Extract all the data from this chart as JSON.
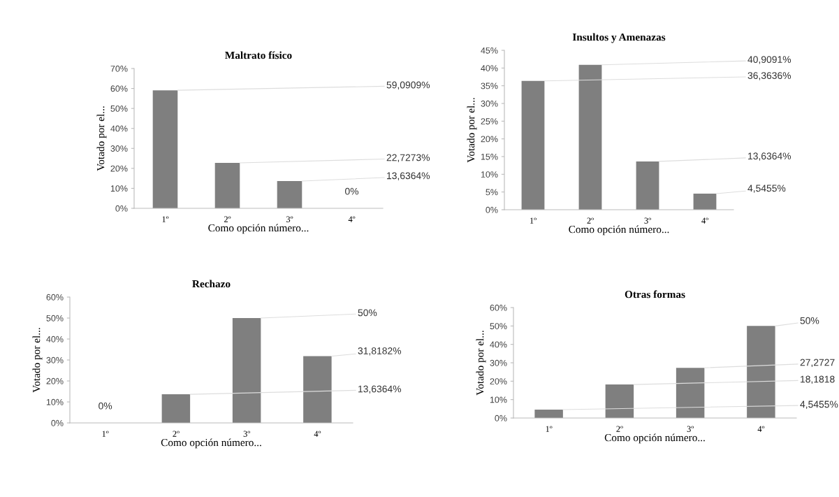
{
  "chart_data": [
    {
      "type": "bar",
      "title": "Maltrato físico",
      "xlabel": "Como opción número...",
      "ylabel": "Votado por el...",
      "categories": [
        "1º",
        "2º",
        "3º",
        "4º"
      ],
      "values": [
        59.0909,
        22.7273,
        13.6364,
        0
      ],
      "value_labels": [
        "59,0909%",
        "22,7273%",
        "13,6364%",
        "0%"
      ],
      "color": "#7f7f7f",
      "ylim": [
        0,
        70
      ],
      "yticks": [
        {
          "value": 0,
          "label": "0%"
        },
        {
          "value": 10,
          "label": "10%"
        },
        {
          "value": 20,
          "label": "20%"
        },
        {
          "value": 30,
          "label": "30%"
        },
        {
          "value": 40,
          "label": "40%"
        },
        {
          "value": 50,
          "label": "50%"
        },
        {
          "value": 60,
          "label": "60%"
        },
        {
          "value": 70,
          "label": "70%"
        }
      ],
      "grid": false,
      "legend": false
    },
    {
      "type": "bar",
      "title": "Insultos y Amenazas",
      "xlabel": "Como opción número...",
      "ylabel": "Votado por el...",
      "categories": [
        "1º",
        "2º",
        "3º",
        "4º"
      ],
      "values": [
        36.3636,
        40.9091,
        13.6364,
        4.5455
      ],
      "value_labels": [
        "36,3636%",
        "40,9091%",
        "13,6364%",
        "4,5455%"
      ],
      "color": "#7f7f7f",
      "ylim": [
        0,
        45
      ],
      "yticks": [
        {
          "value": 0,
          "label": "0%"
        },
        {
          "value": 5,
          "label": "5%"
        },
        {
          "value": 10,
          "label": "10%"
        },
        {
          "value": 15,
          "label": "15%"
        },
        {
          "value": 20,
          "label": "20%"
        },
        {
          "value": 25,
          "label": "25%"
        },
        {
          "value": 30,
          "label": "30%"
        },
        {
          "value": 35,
          "label": "35%"
        },
        {
          "value": 40,
          "label": "40%"
        },
        {
          "value": 45,
          "label": "45%"
        }
      ],
      "grid": false,
      "legend": false
    },
    {
      "type": "bar",
      "title": "Rechazo",
      "xlabel": "Como opción número...",
      "ylabel": "Votado por el...",
      "categories": [
        "1º",
        "2º",
        "3º",
        "4º"
      ],
      "values": [
        0,
        13.6364,
        50,
        31.8182
      ],
      "value_labels": [
        "0%",
        "13,6364%",
        "50%",
        "31,8182%"
      ],
      "color": "#7f7f7f",
      "ylim": [
        0,
        60
      ],
      "yticks": [
        {
          "value": 0,
          "label": "0%"
        },
        {
          "value": 10,
          "label": "10%"
        },
        {
          "value": 20,
          "label": "20%"
        },
        {
          "value": 30,
          "label": "30%"
        },
        {
          "value": 40,
          "label": "40%"
        },
        {
          "value": 50,
          "label": "50%"
        },
        {
          "value": 60,
          "label": "60%"
        }
      ],
      "grid": false,
      "legend": false
    },
    {
      "type": "bar",
      "title": "Otras formas",
      "xlabel": "Como opción número...",
      "ylabel": "Votado por el...",
      "categories": [
        "1º",
        "2º",
        "3º",
        "4º"
      ],
      "values": [
        4.5455,
        18.1818,
        27.2727,
        50
      ],
      "value_labels": [
        "4,5455%",
        "18,1818",
        "27,2727",
        "50%"
      ],
      "color": "#7f7f7f",
      "ylim": [
        0,
        60
      ],
      "yticks": [
        {
          "value": 0,
          "label": "0%"
        },
        {
          "value": 10,
          "label": "10%"
        },
        {
          "value": 20,
          "label": "20%"
        },
        {
          "value": 30,
          "label": "30%"
        },
        {
          "value": 40,
          "label": "40%"
        },
        {
          "value": 50,
          "label": "50%"
        },
        {
          "value": 60,
          "label": "60%"
        }
      ],
      "grid": false,
      "legend": false
    }
  ]
}
